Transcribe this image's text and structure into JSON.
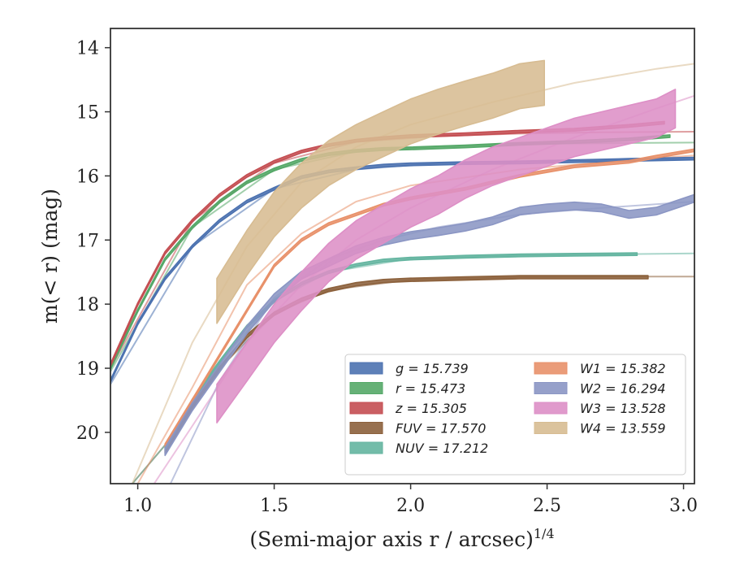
{
  "chart_data": {
    "type": "line",
    "title": "",
    "xlabel": "(Semi-major axis r / arcsec)",
    "xlabel_sup": "1/4",
    "ylabel": "m(< r) (mag)",
    "xlim": [
      0.9,
      3.04
    ],
    "ylim": [
      20.8,
      13.7
    ],
    "y_inverted": true,
    "xticks": [
      "1.0",
      "1.5",
      "2.0",
      "2.5",
      "3.0"
    ],
    "xtick_values": [
      1.0,
      1.5,
      2.0,
      2.5,
      3.0
    ],
    "yticks": [
      "14",
      "15",
      "16",
      "17",
      "18",
      "19",
      "20"
    ],
    "ytick_values": [
      14,
      15,
      16,
      17,
      18,
      19,
      20
    ],
    "legend_position": "lower-right",
    "series": [
      {
        "name": "g = 15.739",
        "color": "#4c72b0",
        "band": {
          "x": [
            0.9,
            1.0,
            1.1,
            1.2,
            1.3,
            1.4,
            1.5,
            1.6,
            1.7,
            1.8,
            1.9,
            2.0,
            2.2,
            2.4,
            2.6,
            2.8,
            3.04
          ],
          "y": [
            19.2,
            18.3,
            17.6,
            17.1,
            16.7,
            16.4,
            16.2,
            16.02,
            15.93,
            15.88,
            15.84,
            15.82,
            15.8,
            15.79,
            15.77,
            15.75,
            15.73
          ],
          "w": 0.04
        },
        "model": {
          "x": [
            0.9,
            1.2,
            1.5,
            1.8,
            2.1,
            2.4,
            2.7,
            3.04
          ],
          "y": [
            19.25,
            17.1,
            16.2,
            15.9,
            15.8,
            15.77,
            15.75,
            15.74
          ]
        }
      },
      {
        "name": "r = 15.473",
        "color": "#55a868",
        "band": {
          "x": [
            0.9,
            1.0,
            1.1,
            1.2,
            1.3,
            1.4,
            1.5,
            1.6,
            1.7,
            1.8,
            1.9,
            2.0,
            2.2,
            2.4,
            2.6,
            2.8,
            2.95
          ],
          "y": [
            19.0,
            18.1,
            17.3,
            16.8,
            16.4,
            16.1,
            15.9,
            15.75,
            15.66,
            15.61,
            15.58,
            15.57,
            15.54,
            15.5,
            15.47,
            15.43,
            15.38
          ],
          "w": 0.04
        },
        "model": {
          "x": [
            0.9,
            1.2,
            1.5,
            1.8,
            2.1,
            2.4,
            2.7,
            3.04
          ],
          "y": [
            19.05,
            16.8,
            15.9,
            15.62,
            15.54,
            15.5,
            15.49,
            15.48
          ]
        }
      },
      {
        "name": "z = 15.305",
        "color": "#c44e52",
        "band": {
          "x": [
            0.9,
            1.0,
            1.1,
            1.2,
            1.3,
            1.4,
            1.5,
            1.6,
            1.7,
            1.8,
            1.9,
            2.0,
            2.2,
            2.4,
            2.6,
            2.8,
            2.93
          ],
          "y": [
            18.95,
            18.0,
            17.2,
            16.7,
            16.3,
            16.0,
            15.78,
            15.62,
            15.52,
            15.45,
            15.41,
            15.38,
            15.35,
            15.31,
            15.28,
            15.22,
            15.17
          ],
          "w": 0.04
        },
        "model": {
          "x": [
            0.9,
            1.2,
            1.5,
            1.8,
            2.1,
            2.4,
            2.7,
            3.04
          ],
          "y": [
            19.0,
            16.7,
            15.8,
            15.47,
            15.38,
            15.34,
            15.32,
            15.31
          ]
        }
      },
      {
        "name": "FUV = 17.570",
        "color": "#8c613c",
        "band": {
          "x": [
            1.1,
            1.2,
            1.3,
            1.4,
            1.5,
            1.6,
            1.7,
            1.8,
            1.9,
            2.0,
            2.2,
            2.4,
            2.6,
            2.87
          ],
          "y": [
            20.3,
            19.6,
            19.0,
            18.5,
            18.15,
            17.93,
            17.78,
            17.69,
            17.64,
            17.62,
            17.6,
            17.58,
            17.58,
            17.58
          ],
          "w": 0.05
        },
        "model": {
          "x": [
            0.98,
            1.1,
            1.3,
            1.5,
            1.7,
            2.0,
            2.4,
            2.8,
            3.04
          ],
          "y": [
            20.8,
            20.2,
            19.0,
            18.15,
            17.78,
            17.62,
            17.58,
            17.57,
            17.57
          ]
        }
      },
      {
        "name": "NUV = 17.212",
        "color": "#64b5a0",
        "band": {
          "x": [
            1.1,
            1.2,
            1.3,
            1.4,
            1.5,
            1.6,
            1.7,
            1.8,
            1.9,
            2.0,
            2.2,
            2.4,
            2.6,
            2.83
          ],
          "y": [
            20.25,
            19.5,
            18.9,
            18.35,
            17.95,
            17.68,
            17.5,
            17.39,
            17.32,
            17.29,
            17.26,
            17.24,
            17.23,
            17.22
          ],
          "w": 0.04
        },
        "model": {
          "x": [
            0.98,
            1.1,
            1.3,
            1.5,
            1.7,
            2.0,
            2.4,
            2.8,
            3.04
          ],
          "y": [
            20.8,
            20.2,
            18.9,
            17.95,
            17.5,
            17.29,
            17.24,
            17.22,
            17.21
          ]
        }
      },
      {
        "name": "W1 = 15.382",
        "color": "#e8916a",
        "band": {
          "x": [
            1.1,
            1.2,
            1.3,
            1.4,
            1.5,
            1.6,
            1.7,
            1.8,
            1.9,
            2.0,
            2.2,
            2.4,
            2.6,
            2.8,
            2.9,
            3.04
          ],
          "y": [
            20.2,
            19.5,
            18.8,
            18.1,
            17.4,
            17.0,
            16.75,
            16.6,
            16.45,
            16.35,
            16.2,
            16.0,
            15.85,
            15.78,
            15.7,
            15.6
          ],
          "w": 0.04
        },
        "model": {
          "x": [
            1.0,
            1.2,
            1.4,
            1.6,
            1.8,
            2.0,
            2.4,
            2.8,
            3.04
          ],
          "y": [
            20.8,
            19.3,
            17.7,
            16.9,
            16.4,
            16.15,
            15.9,
            15.75,
            15.68
          ]
        }
      },
      {
        "name": "W2 = 16.294",
        "color": "#8b96c4",
        "band": {
          "x": [
            1.1,
            1.2,
            1.3,
            1.4,
            1.5,
            1.6,
            1.7,
            1.8,
            1.9,
            2.0,
            2.1,
            2.2,
            2.3,
            2.4,
            2.5,
            2.6,
            2.7,
            2.8,
            2.9,
            3.04
          ],
          "y": [
            20.3,
            19.6,
            19.0,
            18.4,
            17.9,
            17.55,
            17.35,
            17.15,
            17.02,
            16.93,
            16.87,
            16.8,
            16.7,
            16.55,
            16.5,
            16.47,
            16.5,
            16.6,
            16.55,
            16.35
          ],
          "w": 0.12
        },
        "model": {
          "x": [
            1.12,
            1.3,
            1.5,
            1.7,
            1.9,
            2.1,
            2.4,
            2.7,
            3.04
          ],
          "y": [
            20.8,
            19.2,
            17.9,
            17.3,
            17.0,
            16.8,
            16.6,
            16.5,
            16.4
          ]
        }
      },
      {
        "name": "W3 = 13.528",
        "color": "#dd8fc6",
        "band": {
          "x": [
            1.29,
            1.4,
            1.5,
            1.6,
            1.7,
            1.8,
            1.9,
            2.0,
            2.1,
            2.2,
            2.3,
            2.4,
            2.5,
            2.6,
            2.7,
            2.8,
            2.9,
            2.97
          ],
          "y": [
            19.55,
            18.9,
            18.3,
            17.8,
            17.35,
            17.0,
            16.75,
            16.5,
            16.3,
            16.05,
            15.85,
            15.7,
            15.55,
            15.4,
            15.3,
            15.2,
            15.1,
            14.95
          ],
          "w": 0.6
        },
        "model": {
          "x": [
            1.06,
            1.2,
            1.4,
            1.6,
            1.8,
            2.0,
            2.3,
            2.6,
            2.9,
            3.04
          ],
          "y": [
            20.8,
            19.9,
            18.6,
            17.7,
            17.0,
            16.5,
            15.9,
            15.4,
            14.95,
            14.75
          ]
        }
      },
      {
        "name": "W4 = 13.559",
        "color": "#d7bc92",
        "band": {
          "x": [
            1.29,
            1.4,
            1.5,
            1.6,
            1.7,
            1.8,
            1.9,
            2.0,
            2.1,
            2.2,
            2.3,
            2.4,
            2.49
          ],
          "y": [
            17.95,
            17.2,
            16.6,
            16.15,
            15.8,
            15.55,
            15.35,
            15.15,
            15.0,
            14.87,
            14.75,
            14.6,
            14.55
          ],
          "w": 0.7
        },
        "model": {
          "x": [
            0.98,
            1.1,
            1.2,
            1.4,
            1.6,
            1.8,
            2.0,
            2.3,
            2.6,
            2.9,
            3.04
          ],
          "y": [
            20.8,
            19.6,
            18.6,
            17.1,
            16.1,
            15.55,
            15.2,
            14.85,
            14.55,
            14.33,
            14.25
          ]
        }
      }
    ]
  }
}
